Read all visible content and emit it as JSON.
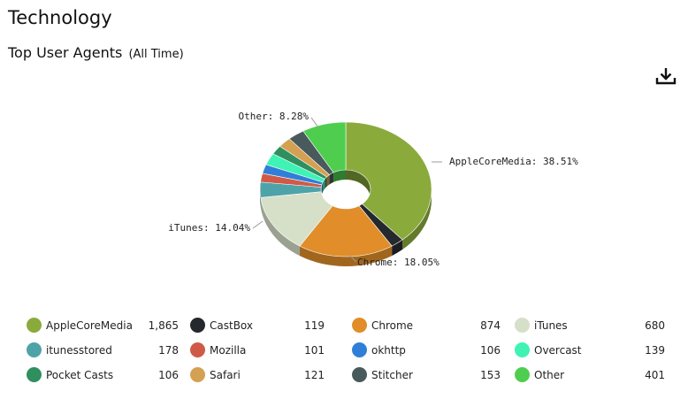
{
  "page": {
    "title": "Technology"
  },
  "chart_header": {
    "title": "Top User Agents",
    "subtitle": "(All Time)"
  },
  "toolbar": {
    "download_icon": "download-icon"
  },
  "chart_data": {
    "type": "pie",
    "title": "Top User Agents",
    "subtitle": "(All Time)",
    "donut": true,
    "slices": [
      {
        "name": "AppleCoreMedia",
        "value": 1865,
        "color": "#8aab3c"
      },
      {
        "name": "CastBox",
        "value": 119,
        "color": "#25282c"
      },
      {
        "name": "Chrome",
        "value": 874,
        "color": "#e08d2a"
      },
      {
        "name": "iTunes",
        "value": 680,
        "color": "#d6dfc8"
      },
      {
        "name": "itunesstored",
        "value": 178,
        "color": "#4ea3a8"
      },
      {
        "name": "Mozilla",
        "value": 101,
        "color": "#cf5a48"
      },
      {
        "name": "okhttp",
        "value": 106,
        "color": "#2f7fd8"
      },
      {
        "name": "Overcast",
        "value": 139,
        "color": "#3ef3b4"
      },
      {
        "name": "Pocket Casts",
        "value": 106,
        "color": "#2f8f5f"
      },
      {
        "name": "Safari",
        "value": 121,
        "color": "#d4a052"
      },
      {
        "name": "Stitcher",
        "value": 153,
        "color": "#485a5b"
      },
      {
        "name": "Other",
        "value": 401,
        "color": "#4fcd4f"
      }
    ],
    "labels": [
      {
        "slice": "AppleCoreMedia",
        "text": "AppleCoreMedia: 38.51%"
      },
      {
        "slice": "Chrome",
        "text": "Chrome: 18.05%"
      },
      {
        "slice": "iTunes",
        "text": "iTunes: 14.04%"
      },
      {
        "slice": "Other",
        "text": "Other: 8.28%"
      }
    ],
    "legend": [
      {
        "name": "AppleCoreMedia",
        "value": "1,865"
      },
      {
        "name": "CastBox",
        "value": "119"
      },
      {
        "name": "Chrome",
        "value": "874"
      },
      {
        "name": "iTunes",
        "value": "680"
      },
      {
        "name": "itunesstored",
        "value": "178"
      },
      {
        "name": "Mozilla",
        "value": "101"
      },
      {
        "name": "okhttp",
        "value": "106"
      },
      {
        "name": "Overcast",
        "value": "139"
      },
      {
        "name": "Pocket Casts",
        "value": "106"
      },
      {
        "name": "Safari",
        "value": "121"
      },
      {
        "name": "Stitcher",
        "value": "153"
      },
      {
        "name": "Other",
        "value": "401"
      }
    ],
    "legend_placement": "bottom"
  }
}
